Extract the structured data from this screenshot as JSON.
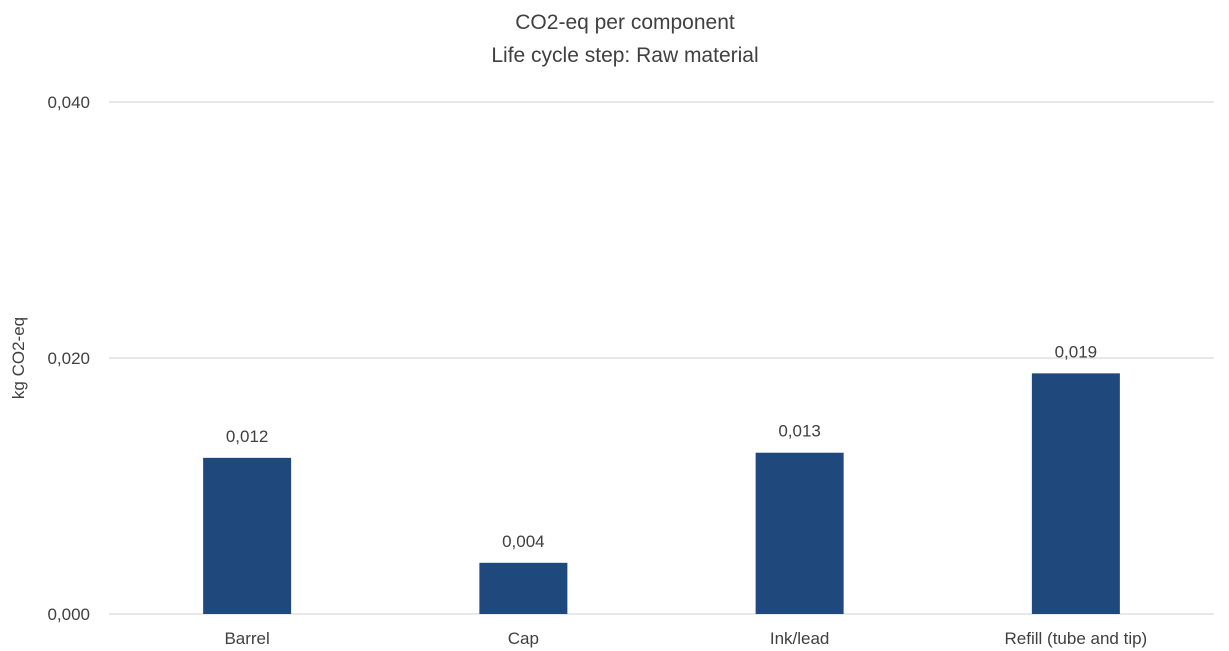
{
  "chart_data": {
    "type": "bar",
    "title": "CO2-eq per component",
    "subtitle": "Life cycle step: Raw material",
    "xlabel": "",
    "ylabel": "kg CO2-eq",
    "categories": [
      "Barrel",
      "Cap",
      "Ink/lead",
      "Refill (tube and tip)"
    ],
    "values": [
      0.0122,
      0.004,
      0.0126,
      0.0188
    ],
    "data_labels": [
      "0,012",
      "0,004",
      "0,013",
      "0,019"
    ],
    "ylim": [
      0,
      0.04
    ],
    "yticks": [
      0,
      0.02,
      0.04
    ],
    "ytick_labels": [
      "0,000",
      "0,020",
      "0,040"
    ],
    "grid": true,
    "legend": "none",
    "colors": {
      "bar": "#1F497D",
      "grid": "#D9D9D9",
      "text": "#404040"
    }
  }
}
